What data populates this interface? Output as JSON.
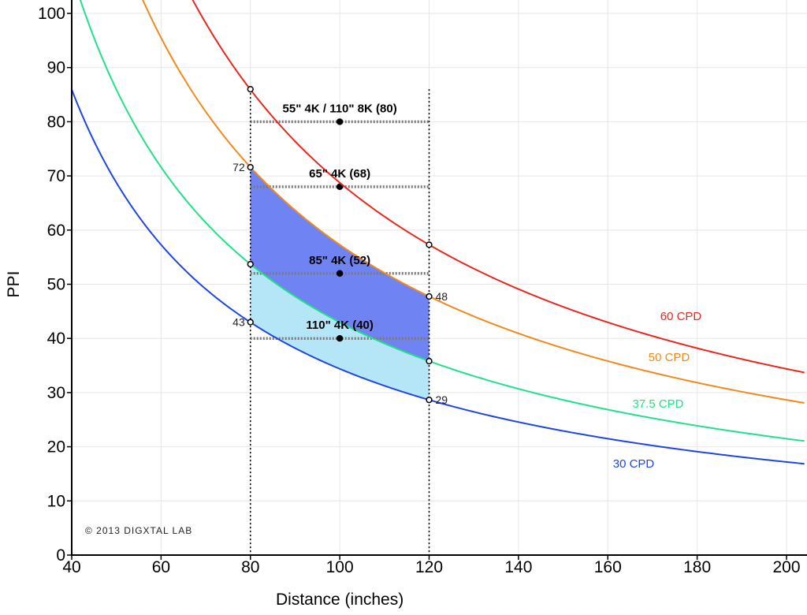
{
  "chart_data": {
    "type": "line",
    "title": "",
    "xlabel": "Distance (inches)",
    "ylabel": "PPI",
    "xlim": [
      40,
      204
    ],
    "ylim": [
      0,
      100
    ],
    "x_ticks": [
      40,
      60,
      80,
      100,
      120,
      140,
      160,
      180,
      200
    ],
    "y_ticks": [
      0,
      10,
      20,
      30,
      40,
      50,
      60,
      70,
      80,
      90,
      100
    ],
    "grid": true,
    "curve_formula": "ppi = k / distance",
    "series": [
      {
        "name": "60 CPD",
        "k": 6875,
        "color": "#e8271f"
      },
      {
        "name": "50 CPD",
        "k": 5730,
        "color": "#f08a1c"
      },
      {
        "name": "37.5 CPD",
        "k": 4297,
        "color": "#22e08a"
      },
      {
        "name": "30 CPD",
        "k": 3438,
        "color": "#1f46e0"
      }
    ],
    "shaded_regions": [
      {
        "between": [
          "50 CPD",
          "37.5 CPD"
        ],
        "x_range": [
          80,
          120
        ],
        "color": "#6f84f2"
      },
      {
        "between": [
          "37.5 CPD",
          "30 CPD"
        ],
        "x_range": [
          80,
          120
        ],
        "color": "#b4e6f8"
      }
    ],
    "tv_references": [
      {
        "label": "55\" 4K / 110\" 8K (80)",
        "ppi": 80,
        "x_range": [
          80,
          120
        ],
        "midpoint_x": 100
      },
      {
        "label": "65\" 4K (68)",
        "ppi": 68,
        "x_range": [
          80,
          120
        ],
        "midpoint_x": 100
      },
      {
        "label": "85\" 4K (52)",
        "ppi": 52,
        "x_range": [
          80,
          120
        ],
        "midpoint_x": 100
      },
      {
        "label": "110\" 4K (40)",
        "ppi": 40,
        "x_range": [
          80,
          120
        ],
        "midpoint_x": 100
      }
    ],
    "vertical_markers": [
      80,
      120
    ],
    "marked_points": [
      {
        "x": 80,
        "y": 86,
        "label": ""
      },
      {
        "x": 80,
        "y": 71.6,
        "label": "72"
      },
      {
        "x": 80,
        "y": 53.7,
        "label": ""
      },
      {
        "x": 80,
        "y": 43,
        "label": "43"
      },
      {
        "x": 120,
        "y": 57.3,
        "label": ""
      },
      {
        "x": 120,
        "y": 47.75,
        "label": "48"
      },
      {
        "x": 120,
        "y": 35.8,
        "label": ""
      },
      {
        "x": 120,
        "y": 28.65,
        "label": "29"
      }
    ],
    "copyright": "© 2013 DIGXTAL LAB",
    "colors": {
      "grid": "#e6e6e6",
      "axis": "#000000",
      "reference_line": "#7a7a7a",
      "marker_line": "#000000"
    }
  }
}
